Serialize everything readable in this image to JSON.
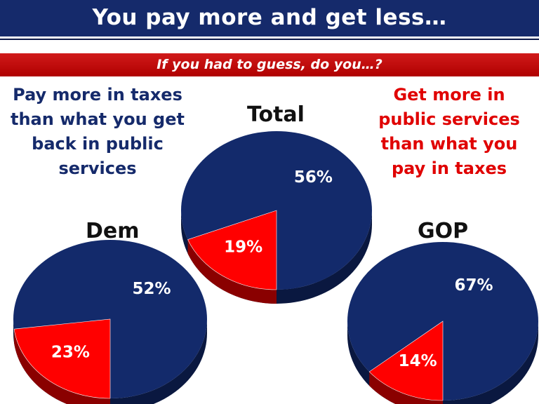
{
  "title": "You pay more and get less…",
  "subtitle": "If you had to guess, do you…?",
  "statement_left": "Pay more in taxes than what you get back in public services",
  "statement_right": "Get more in public services than what you pay in taxes",
  "colors": {
    "pay_more": "#132a6b",
    "get_more": "#ff0000",
    "title_bg": "#152a6b",
    "subtitle_bg": "#c00000"
  },
  "chart_data": [
    {
      "type": "pie",
      "title": "Total",
      "series": [
        {
          "values": [
            56,
            19
          ]
        }
      ],
      "labels": [
        "56%",
        "19%"
      ]
    },
    {
      "type": "pie",
      "title": "Dem",
      "series": [
        {
          "values": [
            52,
            23
          ]
        }
      ],
      "labels": [
        "52%",
        "23%"
      ]
    },
    {
      "type": "pie",
      "title": "GOP",
      "series": [
        {
          "values": [
            67,
            14
          ]
        }
      ],
      "labels": [
        "67%",
        "14%"
      ]
    }
  ]
}
